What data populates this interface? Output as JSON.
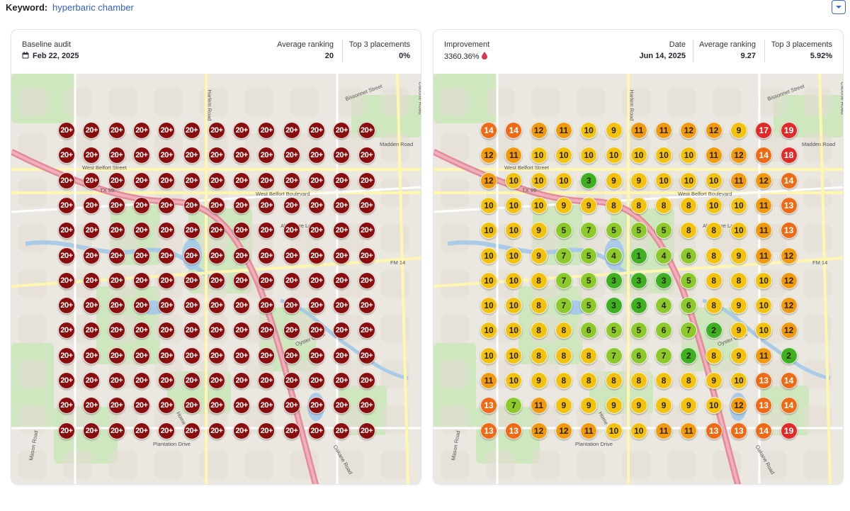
{
  "keyword": {
    "label": "Keyword:",
    "value": "hyperbaric chamber"
  },
  "baseline": {
    "title": "Baseline audit",
    "date": "Feb 22, 2025",
    "avg_label": "Average ranking",
    "avg_value": "20",
    "top3_label": "Top 3 placements",
    "top3_value": "0%",
    "grid_value": "20+"
  },
  "current": {
    "improvement_label": "Improvement",
    "improvement_value": "3360.36%",
    "date_label": "Date",
    "date_value": "Jun 14, 2025",
    "avg_label": "Average ranking",
    "avg_value": "9.27",
    "top3_label": "Top 3 placements",
    "top3_value": "5.92%",
    "grid": [
      [
        14,
        14,
        12,
        11,
        10,
        9,
        11,
        11,
        12,
        12,
        9,
        17,
        19
      ],
      [
        12,
        11,
        10,
        10,
        10,
        10,
        10,
        10,
        10,
        11,
        12,
        14,
        18
      ],
      [
        12,
        10,
        10,
        10,
        3,
        9,
        9,
        10,
        10,
        10,
        11,
        12,
        14
      ],
      [
        10,
        10,
        10,
        9,
        9,
        8,
        8,
        8,
        8,
        10,
        10,
        11,
        13
      ],
      [
        10,
        10,
        9,
        5,
        7,
        5,
        5,
        5,
        8,
        8,
        10,
        11,
        13
      ],
      [
        10,
        10,
        9,
        7,
        5,
        4,
        1,
        4,
        6,
        8,
        9,
        11,
        12
      ],
      [
        10,
        10,
        8,
        7,
        5,
        3,
        3,
        3,
        5,
        8,
        8,
        10,
        12
      ],
      [
        10,
        10,
        8,
        7,
        5,
        3,
        3,
        4,
        6,
        8,
        9,
        10,
        12
      ],
      [
        10,
        10,
        8,
        8,
        6,
        5,
        5,
        6,
        7,
        2,
        9,
        10,
        12
      ],
      [
        10,
        10,
        8,
        8,
        8,
        7,
        6,
        7,
        2,
        8,
        9,
        11,
        2
      ],
      [
        11,
        10,
        9,
        8,
        8,
        8,
        8,
        8,
        8,
        9,
        10,
        13,
        14
      ],
      [
        13,
        7,
        11,
        9,
        9,
        9,
        9,
        9,
        9,
        10,
        12,
        13,
        14
      ],
      [
        13,
        13,
        12,
        12,
        11,
        10,
        10,
        11,
        11,
        13,
        13,
        14,
        19
      ]
    ]
  },
  "map_labels": {
    "bissonnet": "Bissonnet Street",
    "madden": "Madden Road",
    "west_belfort": "West Belfort Street",
    "west_belfort_blvd": "West Belfort Boulevard",
    "tx99": "TX 99",
    "harlem": "Harlem Road",
    "fm": "FM 14",
    "plantation": "Plantation Drive",
    "oyster": "Oyster Creek",
    "mason": "Mason Road",
    "okane": "Oakane Road",
    "cabone": "Cabone Road",
    "abermore": "Abermore Lane",
    "home": "Home Drive"
  },
  "colors": {
    "baseline_pin": "#8a0d0d",
    "rank_1_3": "#3fb021",
    "rank_4_7": "#8cc92a",
    "rank_8_10": "#f2c20f",
    "rank_11_12": "#f29a0f",
    "rank_13_16": "#ee6a14",
    "rank_17_plus": "#e02a2a"
  },
  "icons": {
    "calendar": "calendar-icon",
    "drop": "trend-drop-icon",
    "dropdown": "chevron-down-icon"
  }
}
